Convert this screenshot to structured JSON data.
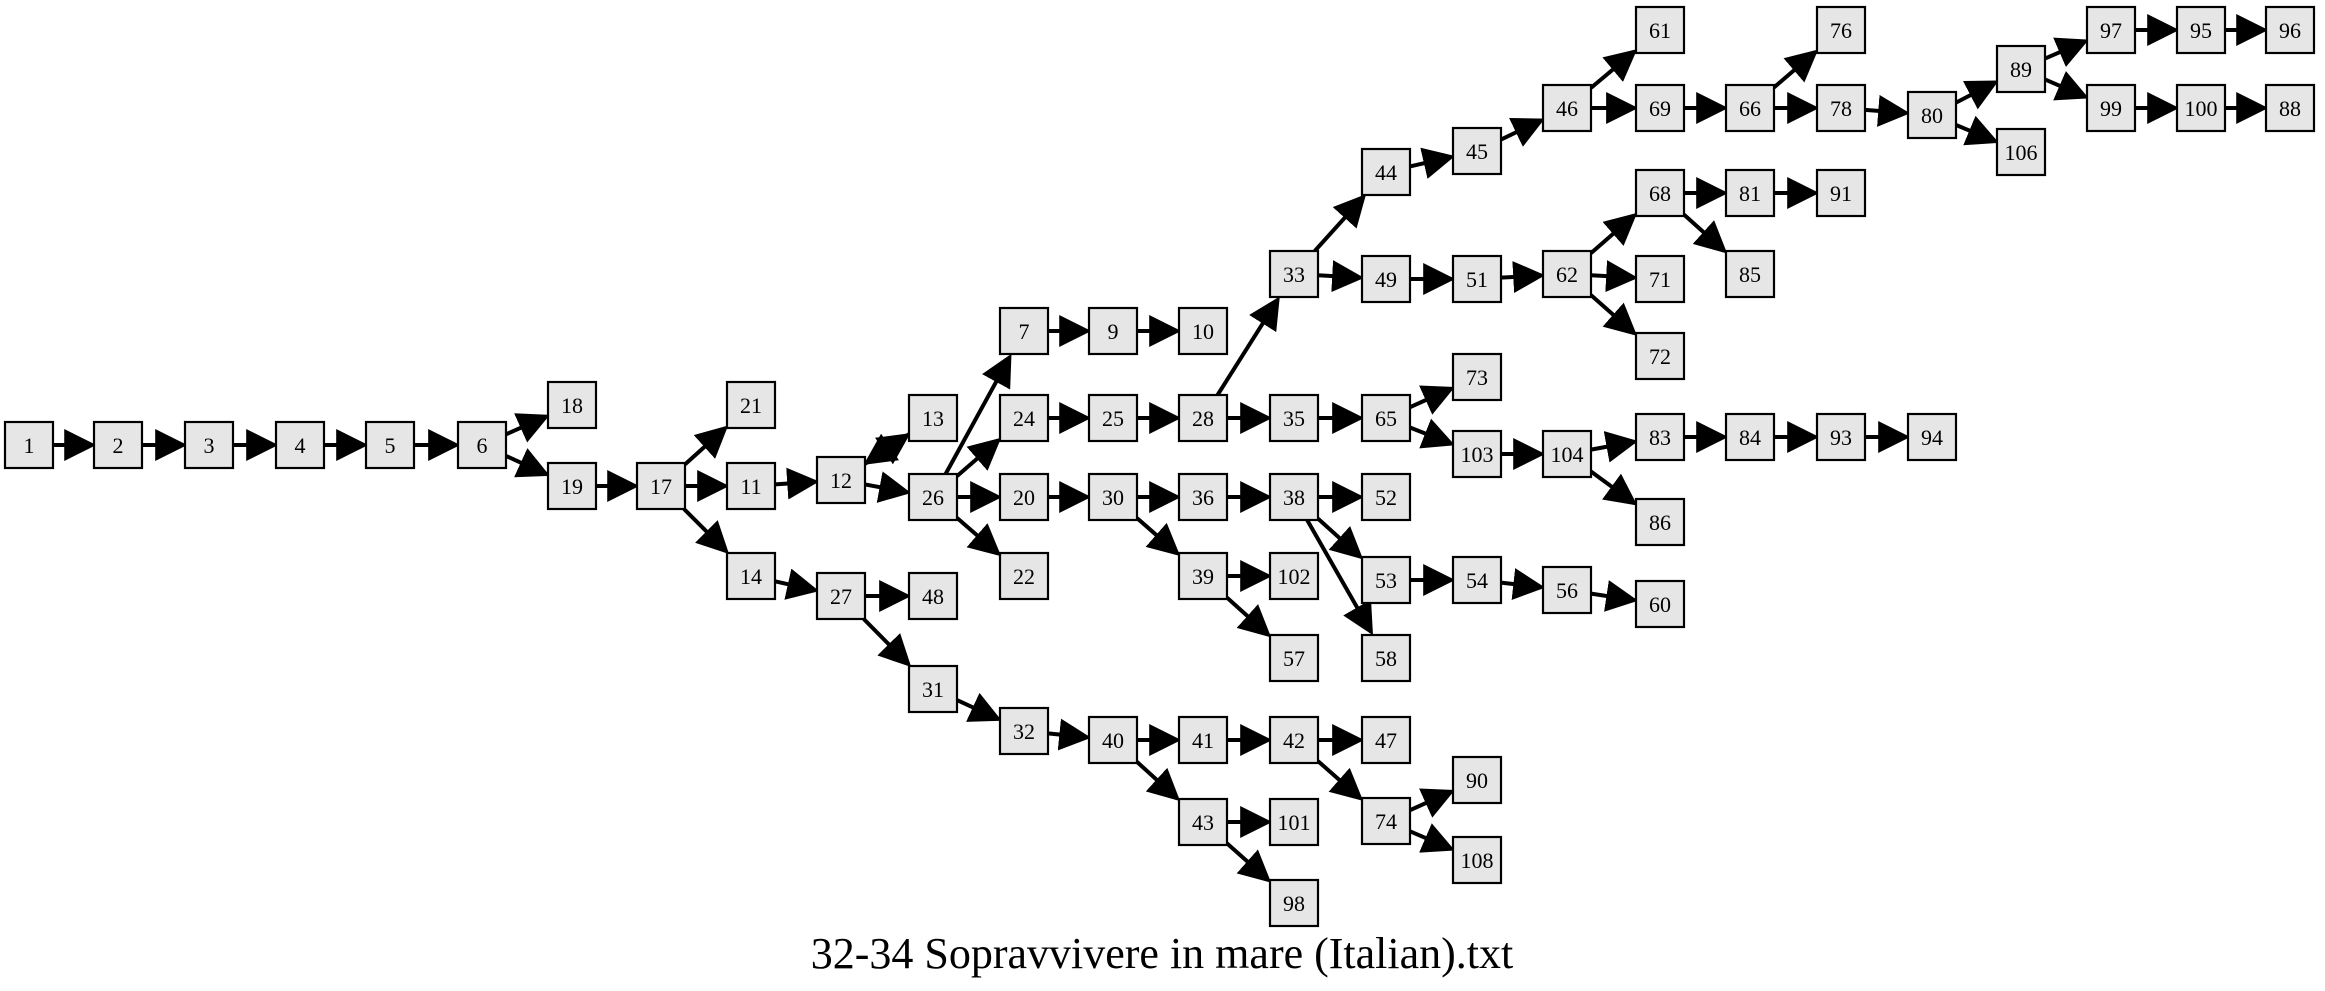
{
  "title": "32-34 Sopravvivere in mare (Italian).txt",
  "colors": {
    "node_fill": "#e6e6e6",
    "node_stroke": "#000000",
    "edge": "#000000",
    "background": "#ffffff"
  },
  "graph": {
    "nodes": [
      "1",
      "2",
      "3",
      "4",
      "5",
      "6",
      "18",
      "19",
      "17",
      "21",
      "11",
      "14",
      "12",
      "13",
      "26",
      "27",
      "48",
      "31",
      "32",
      "7",
      "24",
      "20",
      "22",
      "9",
      "10",
      "25",
      "28",
      "33",
      "35",
      "30",
      "36",
      "39",
      "38",
      "44",
      "49",
      "65",
      "73",
      "103",
      "104",
      "45",
      "46",
      "61",
      "69",
      "66",
      "76",
      "78",
      "80",
      "89",
      "106",
      "97",
      "95",
      "96",
      "99",
      "100",
      "88",
      "51",
      "62",
      "68",
      "81",
      "91",
      "85",
      "71",
      "72",
      "83",
      "84",
      "93",
      "94",
      "86",
      "52",
      "53",
      "54",
      "56",
      "60",
      "58",
      "102",
      "57",
      "40",
      "41",
      "42",
      "47",
      "74",
      "90",
      "108",
      "43",
      "101",
      "98"
    ],
    "edges": [
      [
        "1",
        "2"
      ],
      [
        "2",
        "3"
      ],
      [
        "3",
        "4"
      ],
      [
        "4",
        "5"
      ],
      [
        "5",
        "6"
      ],
      [
        "6",
        "18"
      ],
      [
        "6",
        "19"
      ],
      [
        "19",
        "17"
      ],
      [
        "17",
        "21"
      ],
      [
        "17",
        "11"
      ],
      [
        "17",
        "14"
      ],
      [
        "11",
        "12"
      ],
      [
        "12",
        "13"
      ],
      [
        "13",
        "12"
      ],
      [
        "12",
        "26"
      ],
      [
        "14",
        "27"
      ],
      [
        "27",
        "48"
      ],
      [
        "27",
        "31"
      ],
      [
        "31",
        "32"
      ],
      [
        "32",
        "40"
      ],
      [
        "26",
        "7"
      ],
      [
        "26",
        "24"
      ],
      [
        "26",
        "20"
      ],
      [
        "26",
        "22"
      ],
      [
        "7",
        "9"
      ],
      [
        "9",
        "10"
      ],
      [
        "24",
        "25"
      ],
      [
        "25",
        "28"
      ],
      [
        "28",
        "33"
      ],
      [
        "28",
        "35"
      ],
      [
        "20",
        "30"
      ],
      [
        "30",
        "36"
      ],
      [
        "30",
        "39"
      ],
      [
        "36",
        "38"
      ],
      [
        "33",
        "44"
      ],
      [
        "33",
        "49"
      ],
      [
        "44",
        "45"
      ],
      [
        "45",
        "46"
      ],
      [
        "46",
        "61"
      ],
      [
        "46",
        "69"
      ],
      [
        "69",
        "66"
      ],
      [
        "66",
        "76"
      ],
      [
        "66",
        "78"
      ],
      [
        "78",
        "80"
      ],
      [
        "80",
        "89"
      ],
      [
        "80",
        "106"
      ],
      [
        "89",
        "97"
      ],
      [
        "89",
        "99"
      ],
      [
        "97",
        "95"
      ],
      [
        "95",
        "96"
      ],
      [
        "99",
        "100"
      ],
      [
        "100",
        "88"
      ],
      [
        "49",
        "51"
      ],
      [
        "51",
        "62"
      ],
      [
        "62",
        "68"
      ],
      [
        "62",
        "71"
      ],
      [
        "62",
        "72"
      ],
      [
        "68",
        "81"
      ],
      [
        "68",
        "85"
      ],
      [
        "81",
        "91"
      ],
      [
        "35",
        "65"
      ],
      [
        "65",
        "73"
      ],
      [
        "65",
        "103"
      ],
      [
        "103",
        "104"
      ],
      [
        "104",
        "83"
      ],
      [
        "104",
        "86"
      ],
      [
        "83",
        "84"
      ],
      [
        "84",
        "93"
      ],
      [
        "93",
        "94"
      ],
      [
        "38",
        "52"
      ],
      [
        "38",
        "53"
      ],
      [
        "38",
        "58"
      ],
      [
        "53",
        "54"
      ],
      [
        "54",
        "56"
      ],
      [
        "56",
        "60"
      ],
      [
        "39",
        "102"
      ],
      [
        "39",
        "57"
      ],
      [
        "40",
        "41"
      ],
      [
        "40",
        "43"
      ],
      [
        "41",
        "42"
      ],
      [
        "42",
        "47"
      ],
      [
        "42",
        "74"
      ],
      [
        "74",
        "90"
      ],
      [
        "74",
        "108"
      ],
      [
        "43",
        "101"
      ],
      [
        "43",
        "98"
      ]
    ]
  }
}
